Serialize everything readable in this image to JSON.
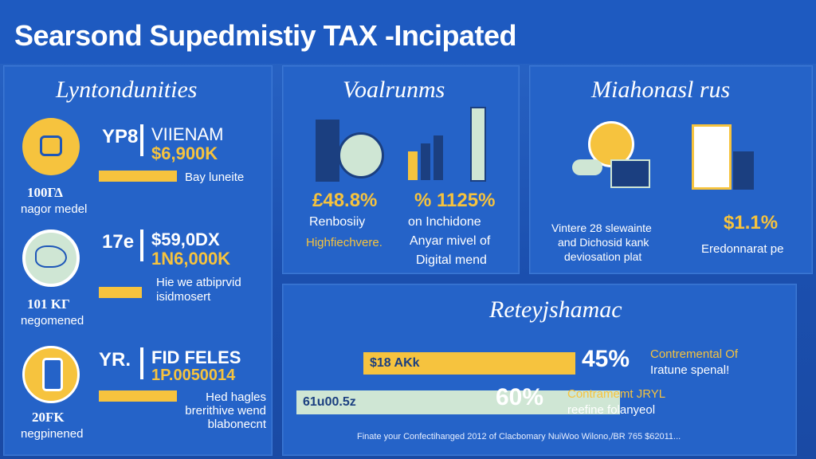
{
  "header": {
    "title": "Searsond Supedmistiy TAX -Incipated"
  },
  "left_panel": {
    "title": "Lyntondunities",
    "rows": [
      {
        "big_label": "100ΓΔ",
        "small_label": "nagor medel",
        "code": "YP8",
        "heading": "VIIENAM",
        "amount": "$6,900K",
        "note": "Bay luneite"
      },
      {
        "big_label": "101 KΓ",
        "small_label": "negomened",
        "code": "17e",
        "heading": "$59,0DX",
        "amount": "1N6,000K",
        "note": "Hie we atbiprvid isidmosert"
      },
      {
        "big_label": "20FK",
        "small_label": "negpinened",
        "code": "YR.",
        "heading": "FID FELES",
        "amount": "1P.0050014",
        "note": "Hed hagles brerithive wend blabonecnt"
      }
    ]
  },
  "volume_panel": {
    "title": "Voalrunms",
    "left_pct": "£48.8%",
    "left_l1": "Renbosiiy",
    "left_l2": "Highfiechvere.",
    "right_pct": "% 1125%",
    "right_l1": "on Inchidone",
    "right_l2": "Anyar mivel of",
    "right_l3": "Digital mend"
  },
  "mia_panel": {
    "title": "Miahonasl rus",
    "desc_l1": "Vintere 28 slewainte",
    "desc_l2": "and Dichosid kank",
    "desc_l3": "deviosation plat",
    "pct": "$1.1%",
    "pct_note": "Eredonnarat pe"
  },
  "bottom_panel": {
    "title": "Reteyjshamac",
    "bars": [
      {
        "label": "$18 AKk",
        "pct": "45%",
        "note_l1": "Contremental Of",
        "note_l2": "Iratune spenal!",
        "fill": 0.45,
        "color": "#f6c33e"
      },
      {
        "label": "61u00.5z",
        "pct": "60%",
        "note_l1": "Contramemt JRYL",
        "note_l2": "reefine folanyeol",
        "fill": 0.6,
        "color": "#cfe6d4"
      }
    ],
    "footer": "Finate your Confectihanged 2012 of Clacbomary NuiWoo Wilono,/BR 765 $62011..."
  },
  "colors": {
    "accent": "#f6c33e",
    "panel": "#2563c8",
    "background": "#1d56b8"
  }
}
